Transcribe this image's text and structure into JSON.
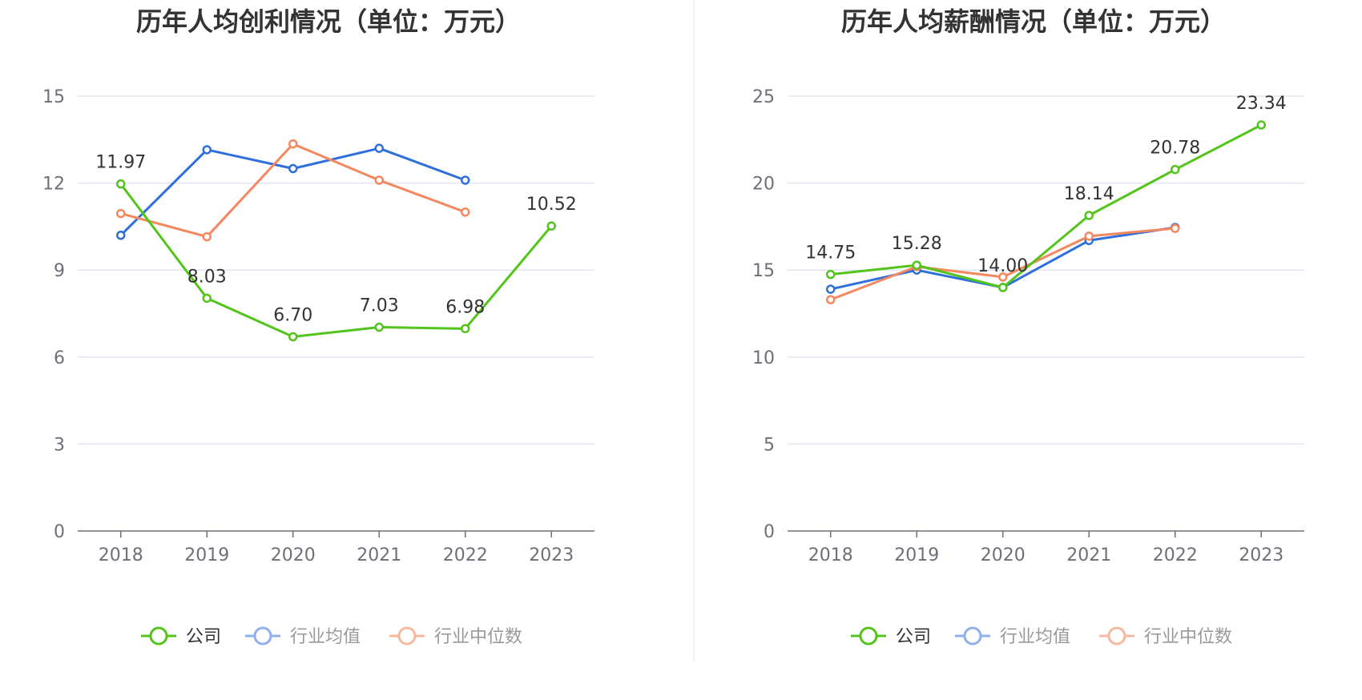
{
  "chart_data": [
    {
      "type": "line",
      "title": "历年人均创利情况（单位：万元）",
      "xlabel": "",
      "ylabel": "",
      "categories": [
        "2018",
        "2019",
        "2020",
        "2021",
        "2022",
        "2023"
      ],
      "ylim": [
        0,
        15
      ],
      "yticks": [
        0,
        3,
        6,
        9,
        12,
        15
      ],
      "grid": true,
      "legend_position": "bottom",
      "series": [
        {
          "name": "公司",
          "color": "#52c41a",
          "values": [
            11.97,
            8.03,
            6.7,
            7.03,
            6.98,
            10.52
          ],
          "labels": [
            "11.97",
            "8.03",
            "6.70",
            "7.03",
            "6.98",
            "10.52"
          ]
        },
        {
          "name": "行业均值",
          "color": "#2f6fdb",
          "values": [
            10.2,
            13.15,
            12.5,
            13.2,
            12.1,
            null
          ]
        },
        {
          "name": "行业中位数",
          "color": "#f5875f",
          "values": [
            10.95,
            10.15,
            13.35,
            12.1,
            11.0,
            null
          ]
        }
      ]
    },
    {
      "type": "line",
      "title": "历年人均薪酬情况（单位：万元）",
      "xlabel": "",
      "ylabel": "",
      "categories": [
        "2018",
        "2019",
        "2020",
        "2021",
        "2022",
        "2023"
      ],
      "ylim": [
        0,
        25
      ],
      "yticks": [
        0,
        5,
        10,
        15,
        20,
        25
      ],
      "grid": true,
      "legend_position": "bottom",
      "series": [
        {
          "name": "公司",
          "color": "#52c41a",
          "values": [
            14.75,
            15.28,
            14.0,
            18.14,
            20.78,
            23.34
          ],
          "labels": [
            "14.75",
            "15.28",
            "14.00",
            "18.14",
            "20.78",
            "23.34"
          ]
        },
        {
          "name": "行业均值",
          "color": "#2f6fdb",
          "values": [
            13.9,
            15.0,
            14.0,
            16.7,
            17.45,
            null
          ]
        },
        {
          "name": "行业中位数",
          "color": "#f5875f",
          "values": [
            13.3,
            15.2,
            14.6,
            16.95,
            17.4,
            null
          ]
        }
      ]
    }
  ],
  "legend_colors": {
    "active_text": "#333333",
    "inactive_text": "#999999",
    "inactive_blue": "#8fb0ec",
    "inactive_orange": "#f8b89f"
  }
}
